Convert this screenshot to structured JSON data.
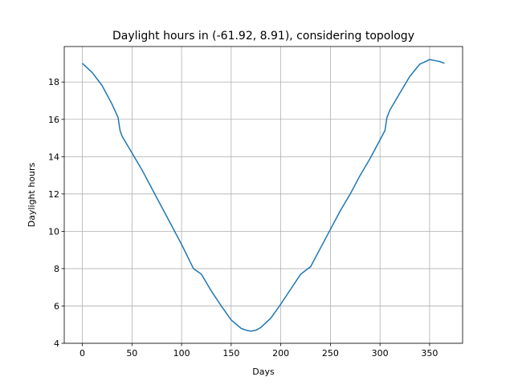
{
  "chart_data": {
    "type": "line",
    "title": "Daylight hours in (-61.92, 8.91), considering topology",
    "xlabel": "Days",
    "ylabel": "Daylight hours",
    "xlim": [
      -18.25,
      383.25
    ],
    "ylim": [
      4.0,
      19.9
    ],
    "xticks": [
      0,
      50,
      100,
      150,
      200,
      250,
      300,
      350
    ],
    "yticks": [
      4,
      6,
      8,
      10,
      12,
      14,
      16,
      18
    ],
    "grid": true,
    "series": [
      {
        "color": "#1f77b4",
        "x": [
          0,
          10,
          20,
          30,
          36,
          38,
          40,
          50,
          60,
          70,
          80,
          90,
          100,
          112,
          120,
          130,
          140,
          150,
          160,
          165,
          170,
          175,
          180,
          190,
          200,
          210,
          220,
          230,
          240,
          250,
          260,
          270,
          280,
          290,
          300,
          305,
          307,
          310,
          320,
          330,
          340,
          350,
          355,
          360,
          365
        ],
        "values": [
          19.0,
          18.5,
          17.8,
          16.8,
          16.1,
          15.4,
          15.1,
          14.2,
          13.3,
          12.3,
          11.3,
          10.3,
          9.3,
          8.0,
          7.7,
          6.8,
          6.0,
          5.25,
          4.8,
          4.7,
          4.65,
          4.7,
          4.85,
          5.35,
          6.1,
          6.9,
          7.7,
          8.1,
          9.1,
          10.1,
          11.1,
          12.0,
          13.0,
          13.9,
          14.9,
          15.4,
          16.1,
          16.5,
          17.4,
          18.3,
          18.95,
          19.2,
          19.15,
          19.1,
          19.0
        ]
      }
    ]
  }
}
